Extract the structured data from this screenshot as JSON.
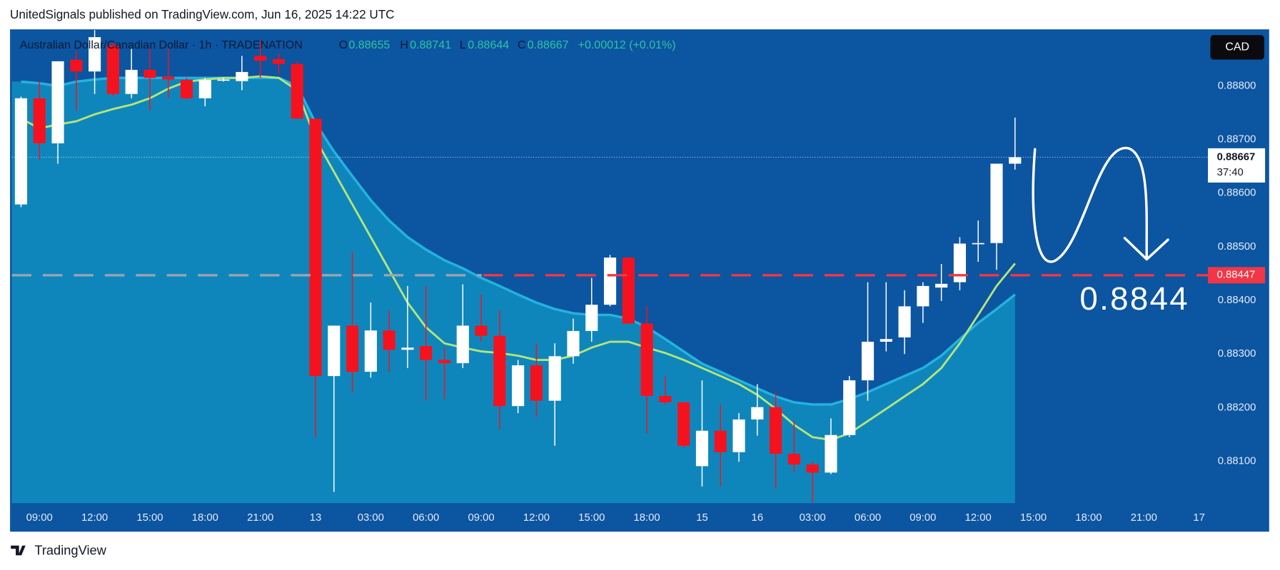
{
  "header": "UnitedSignals published on TradingView.com, Jun 16, 2025 14:22 UTC",
  "footer": "TradingView",
  "chart_data": {
    "type": "candlestick",
    "title": "Australian Dollar/Canadian Dollar · 1h · TRADENATION",
    "ohlc_labels": [
      "O",
      "H",
      "L",
      "C"
    ],
    "change_label": "+0.00012 (+0.01%)",
    "currency": "CAD",
    "countdown": "37:40",
    "annotation": "0.8844",
    "level": 0.88447,
    "level_color": "#f23645",
    "up_color": "#ffffff",
    "down_color": "#f5121f",
    "grid": false,
    "categories": [
      null,
      "09:00",
      null,
      null,
      "12:00",
      null,
      null,
      "15:00",
      null,
      null,
      "18:00",
      null,
      null,
      "21:00",
      null,
      null,
      "13",
      null,
      null,
      "03:00",
      null,
      null,
      "06:00",
      null,
      null,
      "09:00",
      null,
      null,
      "12:00",
      null,
      null,
      "15:00",
      null,
      null,
      "18:00",
      null,
      null,
      "15",
      null,
      null,
      "16",
      null,
      null,
      "03:00",
      null,
      null,
      "06:00",
      null,
      null,
      "09:00",
      null,
      null,
      "12:00",
      null,
      null,
      "15:00",
      null,
      null,
      "18:00",
      null,
      null,
      "21:00",
      null,
      null,
      "17"
    ],
    "open": [
      0.88579,
      0.88777,
      0.88693,
      0.88849,
      0.88827,
      0.88876,
      0.88785,
      0.8883,
      0.88817,
      0.88811,
      0.88777,
      0.88811,
      0.88809,
      0.88856,
      0.8885,
      0.88841,
      0.88739,
      0.88259,
      0.88353,
      0.88267,
      0.88344,
      0.88308,
      0.88315,
      0.88289,
      0.88283,
      0.88353,
      0.88334,
      0.88203,
      0.88279,
      0.88213,
      0.88296,
      0.88343,
      0.88392,
      0.8848,
      0.88357,
      0.88222,
      0.8821,
      0.88091,
      0.88157,
      0.88117,
      0.88178,
      0.88201,
      0.88114,
      0.88094,
      0.88079,
      0.88149,
      0.88251,
      0.88323,
      0.88331,
      0.88389,
      0.88424,
      0.88434,
      0.88506,
      0.88507,
      0.88655,
      null,
      null,
      null,
      null,
      null,
      null,
      null,
      null,
      null,
      null
    ],
    "high": [
      0.8878,
      0.88808,
      0.88846,
      0.88866,
      0.88904,
      0.88884,
      0.88869,
      0.88869,
      0.88869,
      0.88815,
      0.88815,
      0.88815,
      0.88856,
      0.88884,
      0.88861,
      0.88846,
      0.88739,
      0.88353,
      0.88491,
      0.88396,
      0.88381,
      0.88427,
      0.88427,
      0.88312,
      0.8843,
      0.88411,
      0.88381,
      0.88289,
      0.8832,
      0.8832,
      0.88366,
      0.88442,
      0.88485,
      0.8848,
      0.88389,
      0.88259,
      0.8821,
      0.88251,
      0.88206,
      0.8819,
      0.88244,
      0.88229,
      0.88175,
      0.88099,
      0.8818,
      0.88259,
      0.88434,
      0.88434,
      0.88419,
      0.88434,
      0.88468,
      0.88518,
      0.88549,
      0.88655,
      0.88741,
      null,
      null,
      null,
      null,
      null,
      null,
      null,
      null,
      null,
      null
    ],
    "low": [
      0.88574,
      0.88663,
      0.88655,
      0.88754,
      0.88785,
      0.8878,
      0.88777,
      0.88754,
      0.88777,
      0.88774,
      0.88762,
      0.88808,
      0.88792,
      0.88815,
      0.88823,
      0.88739,
      0.88145,
      0.88043,
      0.88229,
      0.88256,
      0.88267,
      0.88274,
      0.88213,
      0.88216,
      0.88274,
      0.88323,
      0.8816,
      0.8819,
      0.88183,
      0.88129,
      0.88282,
      0.88323,
      0.88389,
      0.88357,
      0.88152,
      0.88206,
      0.88125,
      0.88053,
      0.88053,
      0.88099,
      0.88148,
      0.88049,
      0.88079,
      0.88023,
      0.88076,
      0.88145,
      0.88213,
      0.88305,
      0.883,
      0.88358,
      0.88399,
      0.88419,
      0.88472,
      0.88457,
      0.88644,
      null,
      null,
      null,
      null,
      null,
      null,
      null,
      null,
      null,
      null
    ],
    "close": [
      0.88777,
      0.88693,
      0.88846,
      0.88827,
      0.88891,
      0.88785,
      0.8883,
      0.88815,
      0.88812,
      0.88777,
      0.88811,
      0.88812,
      0.88826,
      0.88847,
      0.88841,
      0.88739,
      0.88259,
      0.88353,
      0.88267,
      0.88344,
      0.88308,
      0.88312,
      0.88289,
      0.88283,
      0.88353,
      0.88334,
      0.88203,
      0.88279,
      0.88213,
      0.88296,
      0.88343,
      0.88392,
      0.8848,
      0.88357,
      0.88222,
      0.8821,
      0.88129,
      0.88157,
      0.88117,
      0.88178,
      0.88201,
      0.88114,
      0.88094,
      0.88079,
      0.88149,
      0.88251,
      0.88323,
      0.88328,
      0.88389,
      0.88427,
      0.88431,
      0.88506,
      0.88507,
      0.88655,
      0.88667,
      null,
      null,
      null,
      null,
      null,
      null,
      null,
      null,
      null,
      null
    ],
    "lines": [
      {
        "color": "#b5e57a",
        "values": [
          0.88739,
          0.88721,
          0.88728,
          0.88734,
          0.88747,
          0.88757,
          0.88765,
          0.88777,
          0.88795,
          0.88808,
          0.88812,
          0.88815,
          0.88815,
          0.88818,
          0.88815,
          0.88792,
          0.88701,
          0.8864,
          0.88579,
          0.88518,
          0.88457,
          0.88396,
          0.8835,
          0.8832,
          0.88312,
          0.88305,
          0.88302,
          0.88297,
          0.88289,
          0.88289,
          0.88297,
          0.88312,
          0.88323,
          0.88323,
          0.88312,
          0.88302,
          0.88289,
          0.88274,
          0.88259,
          0.88244,
          0.88224,
          0.88198,
          0.88168,
          0.88145,
          0.8814,
          0.88152,
          0.88175,
          0.88198,
          0.88221,
          0.88244,
          0.88274,
          0.8832,
          0.88373,
          0.88427,
          0.88469,
          null,
          null,
          null,
          null,
          null,
          null,
          null,
          null,
          null,
          null
        ]
      },
      {
        "color": "#23b3df",
        "fill": "#0f86bb",
        "values": [
          0.88808,
          0.88805,
          0.888,
          0.88808,
          0.88812,
          0.88815,
          0.88815,
          0.88815,
          0.88815,
          0.88815,
          0.88815,
          0.88815,
          0.88815,
          0.88815,
          0.88815,
          0.888,
          0.88731,
          0.88678,
          0.88632,
          0.88587,
          0.88549,
          0.88518,
          0.88495,
          0.88475,
          0.8846,
          0.88442,
          0.88427,
          0.88411,
          0.88396,
          0.88384,
          0.88376,
          0.88373,
          0.88373,
          0.88366,
          0.8835,
          0.88328,
          0.88305,
          0.88282,
          0.88267,
          0.88251,
          0.88236,
          0.88221,
          0.8821,
          0.88206,
          0.88206,
          0.88216,
          0.88229,
          0.88244,
          0.88259,
          0.88274,
          0.88297,
          0.88328,
          0.88358,
          0.88384,
          0.88411,
          null,
          null,
          null,
          null,
          null,
          null,
          null,
          null,
          null,
          null
        ]
      }
    ],
    "ylim": [
      0.88022,
      0.88904
    ],
    "yticks": [
      {
        "value": 0.881,
        "label": "0.88100"
      },
      {
        "value": 0.882,
        "label": "0.88200"
      },
      {
        "value": 0.883,
        "label": "0.88300"
      },
      {
        "value": 0.884,
        "label": "0.88400"
      },
      {
        "value": 0.885,
        "label": "0.88500"
      },
      {
        "value": 0.886,
        "label": "0.88600"
      },
      {
        "value": 0.887,
        "label": "0.88700"
      },
      {
        "value": 0.888,
        "label": "0.88800"
      }
    ]
  }
}
